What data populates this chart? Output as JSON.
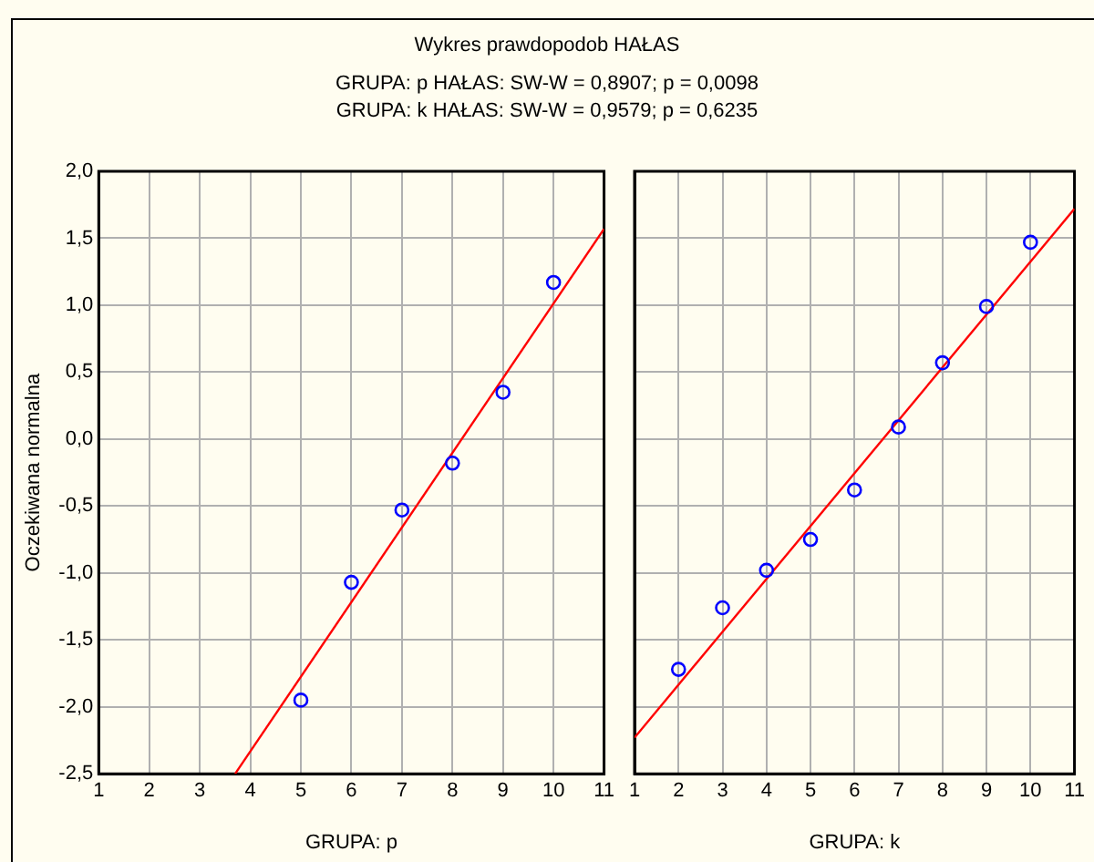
{
  "chart_data": [
    {
      "type": "scatter",
      "title": "Wykres prawdopodob   HAŁAS",
      "annotations": [
        "GRUPA: p  HAŁAS:  SW-W = 0,8907; p = 0,0098",
        "GRUPA: k  HAŁAS:  SW-W = 0,9579; p = 0,6235"
      ],
      "xlabel": "GRUPA: p",
      "ylabel": "Oczekiwana normalna",
      "xlim": [
        1,
        11
      ],
      "ylim": [
        -2.5,
        2
      ],
      "xticks": [
        1,
        2,
        3,
        4,
        5,
        6,
        7,
        8,
        9,
        10,
        11
      ],
      "yticks": [
        {
          "value": -2.5,
          "label": "-2,5"
        },
        {
          "value": -2,
          "label": "-2,0"
        },
        {
          "value": -1.5,
          "label": "-1,5"
        },
        {
          "value": -1,
          "label": "-1,0"
        },
        {
          "value": -0.5,
          "label": "-0,5"
        },
        {
          "value": 0,
          "label": "0,0"
        },
        {
          "value": 0.5,
          "label": "0,5"
        },
        {
          "value": 1,
          "label": "1,0"
        },
        {
          "value": 1.5,
          "label": "1,5"
        },
        {
          "value": 2,
          "label": "2,0"
        }
      ],
      "grid": true,
      "legend": false,
      "series": [
        {
          "type": "scatter",
          "marker": "circle",
          "color": "#0000ff",
          "x": [
            5,
            6,
            7,
            8,
            9,
            10
          ],
          "values": [
            -1.95,
            -1.07,
            -0.53,
            -0.18,
            0.35,
            1.17
          ]
        },
        {
          "type": "line",
          "marker": "none",
          "color": "#ff0000",
          "x": [
            3.7,
            11
          ],
          "values": [
            -2.5,
            1.57
          ]
        }
      ]
    },
    {
      "type": "scatter",
      "xlabel": "GRUPA: k",
      "xlim": [
        1,
        11
      ],
      "ylim": [
        -2.5,
        2
      ],
      "xticks": [
        1,
        2,
        3,
        4,
        5,
        6,
        7,
        8,
        9,
        10,
        11
      ],
      "yticks": [
        -2.5,
        -2,
        -1.5,
        -1,
        -0.5,
        0,
        0.5,
        1,
        1.5,
        2
      ],
      "tick_labels": "x",
      "grid": true,
      "legend": false,
      "series": [
        {
          "type": "scatter",
          "marker": "circle",
          "color": "#0000ff",
          "x": [
            2,
            3,
            4,
            5,
            6,
            7,
            8,
            9,
            10
          ],
          "values": [
            -1.72,
            -1.26,
            -0.98,
            -0.75,
            -0.38,
            0.09,
            0.57,
            0.99,
            1.47
          ]
        },
        {
          "type": "line",
          "marker": "none",
          "color": "#ff0000",
          "x": [
            1,
            11
          ],
          "values": [
            -2.23,
            1.72
          ]
        }
      ]
    }
  ]
}
